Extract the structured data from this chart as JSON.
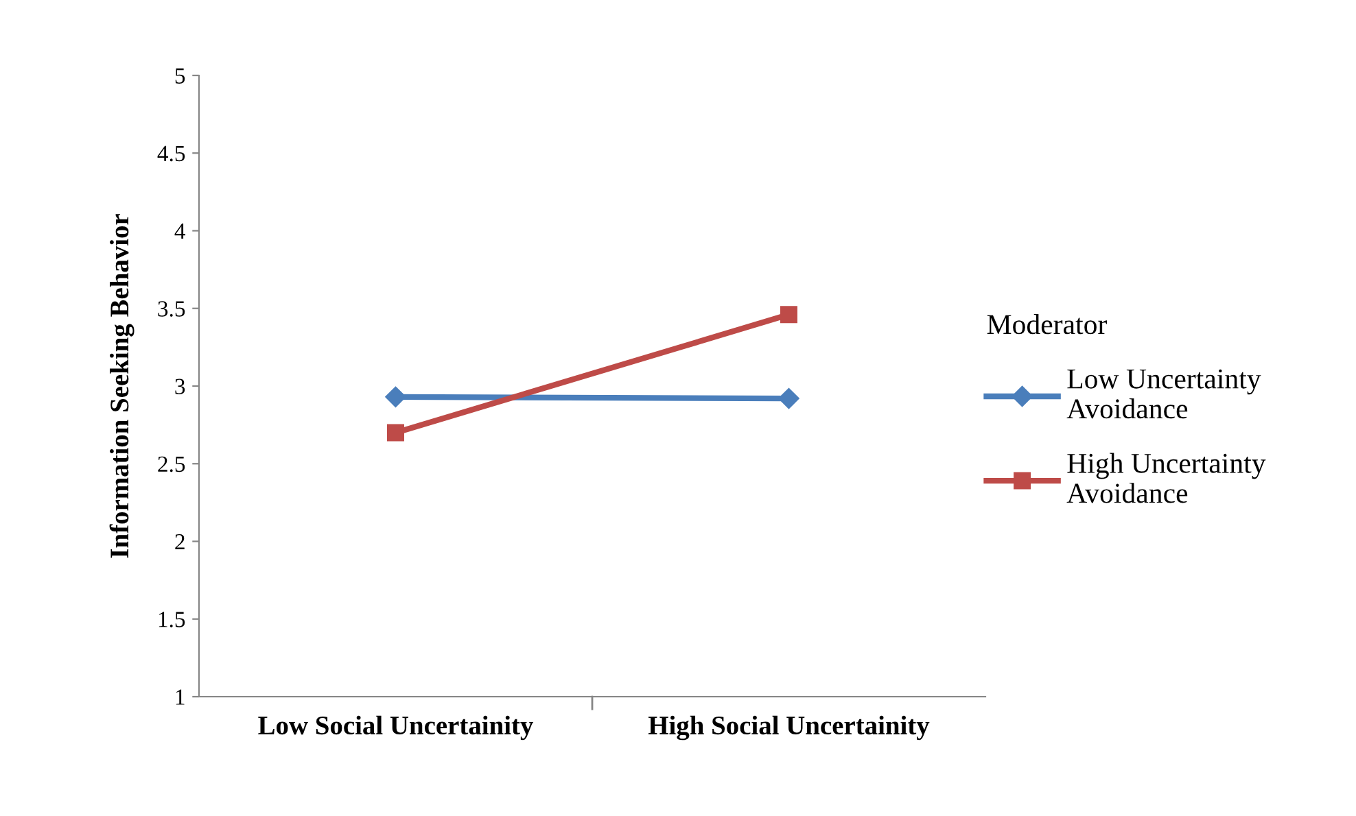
{
  "chart_data": {
    "type": "line",
    "ylabel": "Information Seeking Behavior",
    "legend_title": "Moderator",
    "categories": [
      "Low Social Uncertainity",
      "High Social Uncertainity"
    ],
    "series": [
      {
        "name": "Low Uncertainty\nAvoidance",
        "color": "#4a7ebb",
        "marker": "diamond",
        "values": [
          2.93,
          2.92
        ]
      },
      {
        "name": "High Uncertainty\nAvoidance",
        "color": "#be4b48",
        "marker": "square",
        "values": [
          2.7,
          3.46
        ]
      }
    ],
    "ylim": [
      1,
      5
    ],
    "yticks": [
      1,
      1.5,
      2,
      2.5,
      3,
      3.5,
      4,
      4.5,
      5
    ],
    "grid": false,
    "legend": "right",
    "line_style": "solid"
  }
}
